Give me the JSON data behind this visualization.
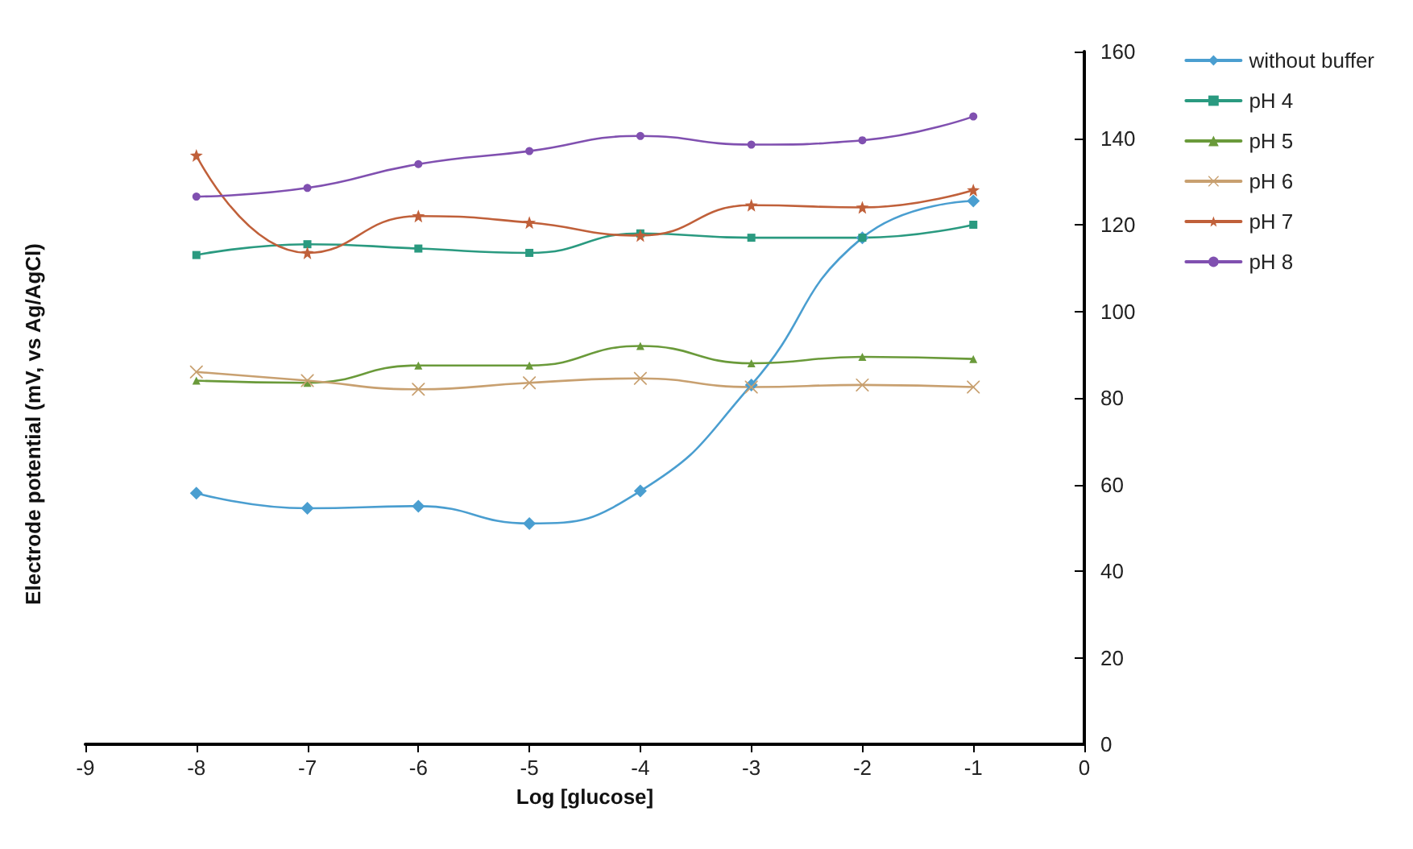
{
  "chart_data": {
    "type": "line",
    "xlabel": "Log [glucose]",
    "ylabel": "Electrode potential (mV, vs Ag/AgCl)",
    "x": [
      -8,
      -7,
      -6,
      -5,
      -4,
      -3,
      -2,
      -1
    ],
    "xlim": [
      -9,
      0
    ],
    "xticks": [
      -9,
      -8,
      -7,
      -6,
      -5,
      -4,
      -3,
      -2,
      -1,
      0
    ],
    "ylim": [
      0,
      160
    ],
    "yticks": [
      0,
      20,
      40,
      60,
      80,
      100,
      120,
      140,
      160
    ],
    "grid": false,
    "legend": "right",
    "line_style": "solid",
    "series": [
      {
        "name": "without buffer",
        "color": "#4a9ed0",
        "marker": "diamond",
        "values": [
          58,
          54.5,
          55,
          51,
          58.5,
          83,
          117,
          125.5
        ]
      },
      {
        "name": "pH 4",
        "color": "#2a9a80",
        "marker": "square",
        "values": [
          113,
          115.5,
          114.5,
          113.5,
          118,
          117,
          117,
          120
        ]
      },
      {
        "name": "pH 5",
        "color": "#6a9a3a",
        "marker": "triangle",
        "values": [
          84,
          83.5,
          87.5,
          87.5,
          92,
          88,
          89.5,
          89
        ]
      },
      {
        "name": "pH 6",
        "color": "#c8a070",
        "marker": "cross",
        "values": [
          86,
          84,
          82,
          83.5,
          84.5,
          82.5,
          83,
          82.5
        ]
      },
      {
        "name": "pH 7",
        "color": "#c0603a",
        "marker": "star",
        "values": [
          136,
          113.5,
          122,
          120.5,
          117.5,
          124.5,
          124,
          128
        ]
      },
      {
        "name": "pH 8",
        "color": "#8050b0",
        "marker": "circle",
        "values": [
          126.5,
          128.5,
          134,
          137,
          140.5,
          138.5,
          139.5,
          145
        ]
      }
    ]
  }
}
